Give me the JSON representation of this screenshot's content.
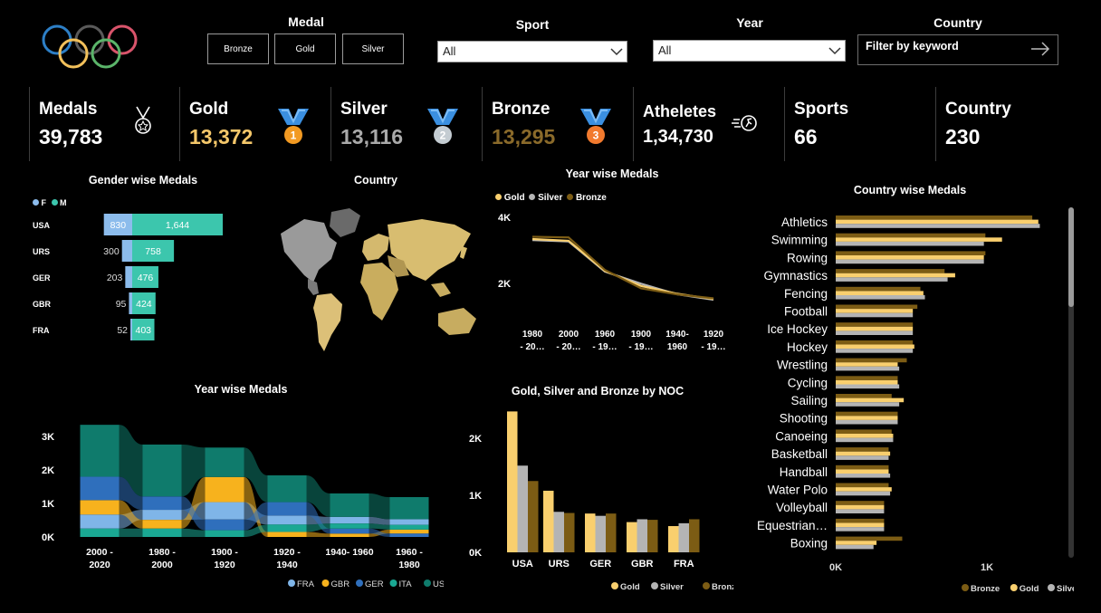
{
  "filters": {
    "medal_label": "Medal",
    "medal_buttons": [
      "Bronze",
      "Gold",
      "Silver"
    ],
    "sport_label": "Sport",
    "sport_value": "All",
    "year_label": "Year",
    "year_value": "All",
    "country_label": "Country",
    "country_placeholder": "Filter by keyword"
  },
  "kpis": [
    {
      "label": "Medals",
      "value": "39,783",
      "icon": "medal-outline-icon"
    },
    {
      "label": "Gold",
      "value": "13,372",
      "icon": "gold-medal-1-icon",
      "badge": "1",
      "color": "#f4c76a"
    },
    {
      "label": "Silver",
      "value": "13,116",
      "icon": "silver-medal-2-icon",
      "badge": "2",
      "color": "#a9a9a9"
    },
    {
      "label": "Bronze",
      "value": "13,295",
      "icon": "bronze-medal-3-icon",
      "badge": "3",
      "color": "#8a6a2a"
    },
    {
      "label": "Atheletes",
      "value": "1,34,730",
      "icon": "runner-icon"
    },
    {
      "label": "Sports",
      "value": "66"
    },
    {
      "label": "Country",
      "value": "230"
    }
  ],
  "colors": {
    "gold": "#f9cf6e",
    "silver": "#b4b4b4",
    "bronze": "#7c5c14",
    "female": "#8cbcec",
    "male": "#3cc6ad",
    "fra": "#7fb5e8",
    "gbr": "#f7b21d",
    "ger": "#2f6fbc",
    "ita": "#1aa893",
    "usa": "#0f7b6c"
  },
  "gender_chart": {
    "title": "Gender wise Medals",
    "legend": [
      "F",
      "M"
    ],
    "chart_data": {
      "type": "bar",
      "categories": [
        "USA",
        "URS",
        "GER",
        "GBR",
        "FRA"
      ],
      "series": [
        {
          "name": "F",
          "values": [
            830,
            300,
            203,
            95,
            52
          ]
        },
        {
          "name": "M",
          "values": [
            1644,
            758,
            476,
            424,
            403
          ]
        }
      ],
      "labels_f": [
        "830",
        "300",
        "203",
        "95",
        "52"
      ],
      "labels_m": [
        "1,644",
        "758",
        "476",
        "424",
        "403"
      ]
    }
  },
  "map": {
    "title": "Country"
  },
  "year_line": {
    "title": "Year wise Medals",
    "legend": [
      "Gold",
      "Silver",
      "Bronze"
    ],
    "chart_data": {
      "type": "line",
      "categories": [
        "1980 - 20…",
        "2000 - 20…",
        "1960 - 19…",
        "1900 - 19…",
        "1940- 1960",
        "1920 - 19…"
      ],
      "yticks": [
        "4K",
        "2K"
      ],
      "ylim": [
        0,
        4000
      ],
      "series": [
        {
          "name": "Gold",
          "values": [
            3350,
            3300,
            2400,
            1950,
            1720,
            1560
          ]
        },
        {
          "name": "Silver",
          "values": [
            3320,
            3280,
            2380,
            2020,
            1700,
            1540
          ]
        },
        {
          "name": "Bronze",
          "values": [
            3420,
            3400,
            2430,
            1880,
            1700,
            1580
          ]
        }
      ]
    }
  },
  "ribbon": {
    "title": "Year wise Medals",
    "legend": [
      "FRA",
      "GBR",
      "GER",
      "ITA",
      "USA"
    ],
    "chart_data": {
      "type": "area",
      "categories": [
        "2000 - 2020",
        "1980 - 2000",
        "1900 - 1920",
        "1920 - 1940",
        "1940- 1960",
        "1960 - 1980"
      ],
      "cat_line1": [
        "2000 -",
        "1980 -",
        "1900 -",
        "1920 -",
        "1940- 1960",
        "1960 -"
      ],
      "cat_line2": [
        "2020",
        "2000",
        "1920",
        "1940",
        "",
        "1980"
      ],
      "yticks": [
        "3K",
        "2K",
        "1K",
        "0K"
      ],
      "ylim": [
        0,
        3300
      ],
      "series": [
        {
          "name": "FRA",
          "values": [
            420,
            300,
            520,
            270,
            200,
            170
          ]
        },
        {
          "name": "GBR",
          "values": [
            430,
            260,
            750,
            150,
            100,
            120
          ]
        },
        {
          "name": "GER",
          "values": [
            700,
            400,
            320,
            400,
            150,
            100
          ]
        },
        {
          "name": "ITA",
          "values": [
            250,
            250,
            200,
            220,
            150,
            140
          ]
        },
        {
          "name": "USA",
          "values": [
            1550,
            1550,
            880,
            800,
            700,
            660
          ]
        }
      ]
    }
  },
  "noc_chart": {
    "title": "Gold, Silver and Bronze by NOC",
    "legend": [
      "Gold",
      "Silver",
      "Bronze"
    ],
    "chart_data": {
      "type": "bar",
      "categories": [
        "USA",
        "URS",
        "GER",
        "GBR",
        "FRA"
      ],
      "yticks": [
        "2K",
        "1K",
        "0K"
      ],
      "ylim": [
        0,
        2600
      ],
      "series": [
        {
          "name": "Gold",
          "values": [
            2470,
            1080,
            680,
            530,
            460
          ]
        },
        {
          "name": "Silver",
          "values": [
            1520,
            710,
            640,
            580,
            510
          ]
        },
        {
          "name": "Bronze",
          "values": [
            1250,
            690,
            680,
            570,
            580
          ]
        }
      ]
    }
  },
  "country_chart": {
    "title": "Country wise Medals",
    "legend": [
      "Bronze",
      "Gold",
      "Silver"
    ],
    "chart_data": {
      "type": "bar",
      "orientation": "horizontal",
      "categories": [
        "Athletics",
        "Swimming",
        "Rowing",
        "Gymnastics",
        "Fencing",
        "Football",
        "Ice Hockey",
        "Hockey",
        "Wrestling",
        "Cycling",
        "Sailing",
        "Shooting",
        "Canoeing",
        "Basketball",
        "Handball",
        "Water Polo",
        "Volleyball",
        "Equestrian…",
        "Boxing"
      ],
      "xticks": [
        "0K",
        "1K"
      ],
      "xlim": [
        0,
        1600
      ],
      "series": [
        {
          "name": "Bronze",
          "values": [
            1300,
            990,
            990,
            720,
            560,
            540,
            510,
            510,
            470,
            410,
            370,
            410,
            370,
            350,
            350,
            350,
            320,
            320,
            440
          ]
        },
        {
          "name": "Gold",
          "values": [
            1340,
            1100,
            980,
            790,
            580,
            510,
            510,
            520,
            410,
            410,
            450,
            410,
            380,
            360,
            350,
            370,
            320,
            320,
            270
          ]
        },
        {
          "name": "Silver",
          "values": [
            1350,
            980,
            980,
            740,
            590,
            510,
            510,
            510,
            420,
            420,
            420,
            410,
            380,
            350,
            360,
            360,
            320,
            320,
            250
          ]
        }
      ]
    }
  }
}
